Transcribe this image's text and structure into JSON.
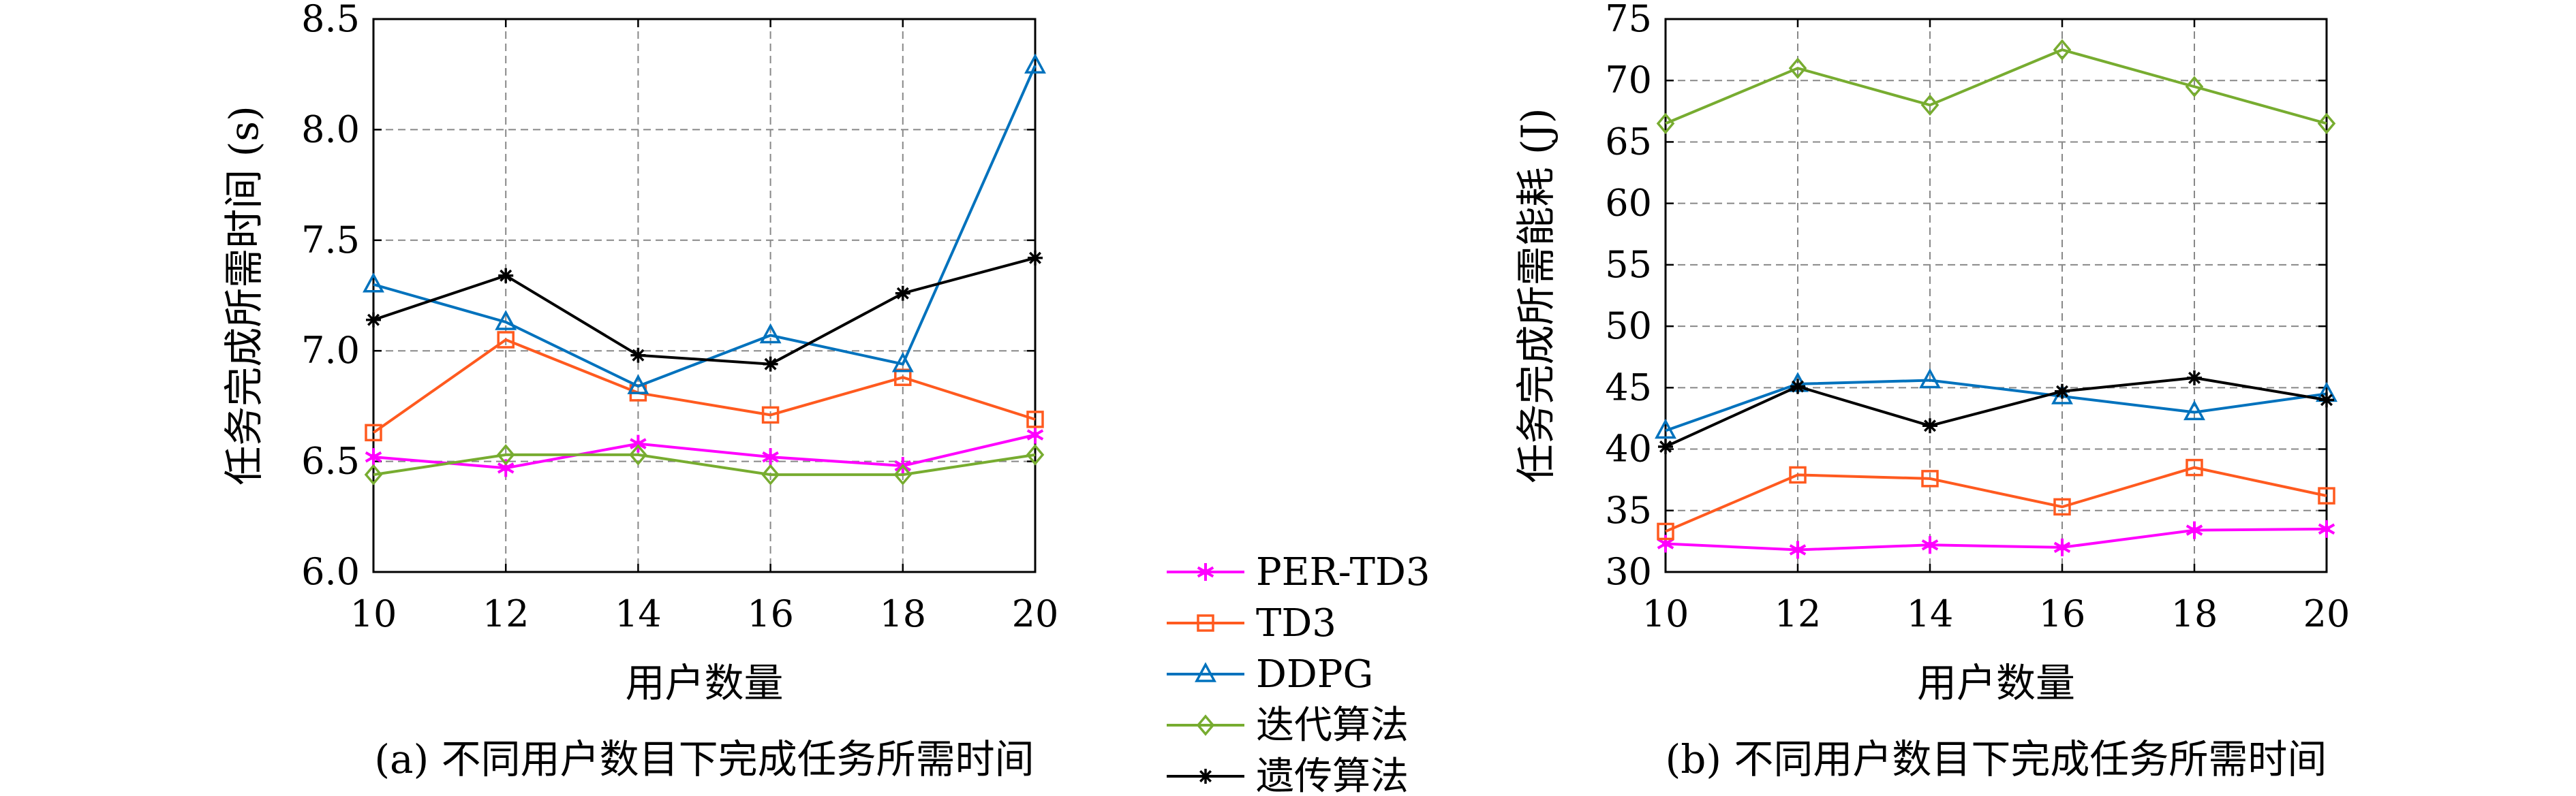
{
  "legend": {
    "items": [
      {
        "label": "PER-TD3",
        "color": "#ff00ff",
        "marker": "star-icon"
      },
      {
        "label": "TD3",
        "color": "#ff5a1f",
        "marker": "square-icon"
      },
      {
        "label": "DDPG",
        "color": "#0072bd",
        "marker": "triangle-icon"
      },
      {
        "label": "迭代算法",
        "color": "#77ac30",
        "marker": "diamond-icon"
      },
      {
        "label": "遗传算法",
        "color": "#000000",
        "marker": "asterisk-icon"
      }
    ]
  },
  "chart_data": [
    {
      "type": "line",
      "caption": "(a) 不同用户数目下完成任务所需时间",
      "xlabel": "用户数量",
      "ylabel": "任务完成所需时间 (s)",
      "x": [
        10,
        12,
        14,
        16,
        18,
        20
      ],
      "xlim": [
        10,
        20
      ],
      "ylim": [
        6.0,
        8.5
      ],
      "yticks": [
        "6.0",
        "6.5",
        "7.0",
        "7.5",
        "8.0",
        "8.5"
      ],
      "xticks": [
        "10",
        "12",
        "14",
        "16",
        "18",
        "20"
      ],
      "grid": true,
      "series": [
        {
          "name": "PER-TD3",
          "values": [
            6.52,
            6.47,
            6.58,
            6.52,
            6.48,
            6.62
          ]
        },
        {
          "name": "TD3",
          "values": [
            6.63,
            7.05,
            6.81,
            6.71,
            6.88,
            6.69
          ]
        },
        {
          "name": "DDPG",
          "values": [
            7.3,
            7.13,
            6.84,
            7.07,
            6.94,
            8.29
          ]
        },
        {
          "name": "迭代算法",
          "values": [
            6.44,
            6.53,
            6.53,
            6.44,
            6.44,
            6.53
          ]
        },
        {
          "name": "遗传算法",
          "values": [
            7.14,
            7.34,
            6.98,
            6.94,
            7.26,
            7.42
          ]
        }
      ]
    },
    {
      "type": "line",
      "caption": "(b) 不同用户数目下完成任务所需时间",
      "xlabel": "用户数量",
      "ylabel": "任务完成所需能耗 (J)",
      "x": [
        10,
        12,
        14,
        16,
        18,
        20
      ],
      "xlim": [
        10,
        20
      ],
      "ylim": [
        30,
        75
      ],
      "yticks": [
        "30",
        "35",
        "40",
        "45",
        "50",
        "55",
        "60",
        "65",
        "70",
        "75"
      ],
      "xticks": [
        "10",
        "12",
        "14",
        "16",
        "18",
        "20"
      ],
      "grid": true,
      "series": [
        {
          "name": "PER-TD3",
          "values": [
            32.3,
            31.8,
            32.2,
            32.0,
            33.4,
            33.5
          ]
        },
        {
          "name": "TD3",
          "values": [
            33.3,
            37.9,
            37.6,
            35.3,
            38.5,
            36.2
          ]
        },
        {
          "name": "DDPG",
          "values": [
            41.5,
            45.3,
            45.6,
            44.3,
            43.0,
            44.5
          ]
        },
        {
          "name": "迭代算法",
          "values": [
            66.5,
            71.0,
            68.0,
            72.5,
            69.5,
            66.5
          ]
        },
        {
          "name": "遗传算法",
          "values": [
            40.2,
            45.1,
            41.9,
            44.7,
            45.8,
            44.0
          ]
        }
      ]
    }
  ]
}
